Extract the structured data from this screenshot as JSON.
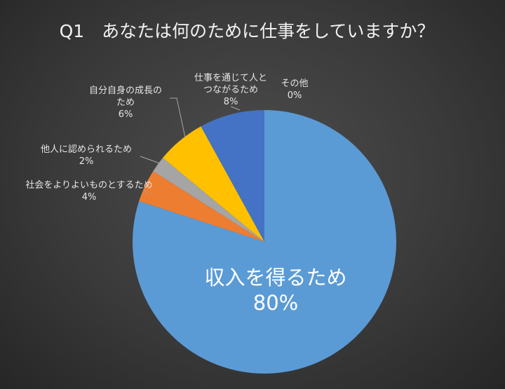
{
  "chart_data": {
    "type": "pie",
    "title": "Q1　あなたは何のために仕事をしていますか？",
    "start_angle_deg": 0,
    "direction": "clockwise",
    "slices": [
      {
        "label": "収入を得るため",
        "value": 80,
        "value_text": "80%",
        "color": "#5b9bd5"
      },
      {
        "label": "社会をよりよいものとするため",
        "value": 4,
        "value_text": "4%",
        "color": "#ed7d31"
      },
      {
        "label": "他人に認められるため",
        "value": 2,
        "value_text": "2%",
        "color": "#a5a5a5"
      },
      {
        "label": "自分自身の成長のため",
        "value": 6,
        "value_text": "6%",
        "color": "#ffc000"
      },
      {
        "label": "仕事を通じて人とつながるため",
        "value": 8,
        "value_text": "8%",
        "color": "#4472c4"
      },
      {
        "label": "その他",
        "value": 0,
        "value_text": "0%",
        "color": "#70ad47"
      }
    ],
    "label_lines": {
      "s0": [
        "収入を得るため",
        "80%"
      ],
      "s1": [
        "社会をよりよいものとするため",
        "4%"
      ],
      "s2": [
        "他人に認められるため",
        "2%"
      ],
      "s3": [
        "自分自身の成長の",
        "ため",
        "6%"
      ],
      "s4": [
        "仕事を通じて人と",
        "つながるため",
        "8%"
      ],
      "s5": [
        "その他",
        "0%"
      ]
    }
  }
}
